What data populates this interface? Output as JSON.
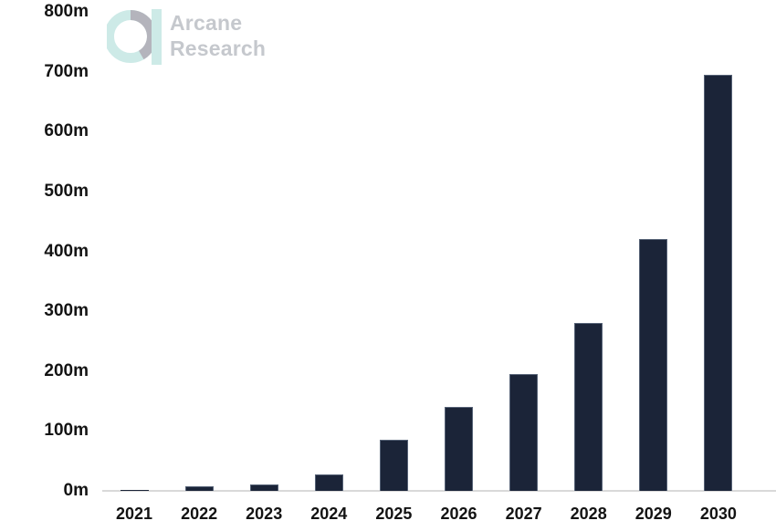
{
  "logo": {
    "brand_line1": "Arcane",
    "brand_line2": "Research",
    "text_color": "#c5c8cd",
    "mark_teal": "#cdeae7",
    "mark_gray": "#b4b4bc"
  },
  "chart_data": {
    "type": "bar",
    "categories": [
      "2021",
      "2022",
      "2023",
      "2024",
      "2025",
      "2026",
      "2027",
      "2028",
      "2029",
      "2030"
    ],
    "values": [
      1,
      7,
      11,
      28,
      85,
      140,
      195,
      280,
      420,
      695
    ],
    "unit": "m",
    "title": "",
    "xlabel": "",
    "ylabel": "",
    "ylim": [
      0,
      800
    ],
    "ytick_step": 100,
    "ytick_labels": [
      "800m",
      "700m",
      "600m",
      "500m",
      "400m",
      "300m",
      "200m",
      "100m",
      "0m"
    ],
    "grid": false,
    "legend": false,
    "bar_color": "#1b2438",
    "axis_line_color": "#d9d9d9",
    "label_color": "#131313"
  }
}
